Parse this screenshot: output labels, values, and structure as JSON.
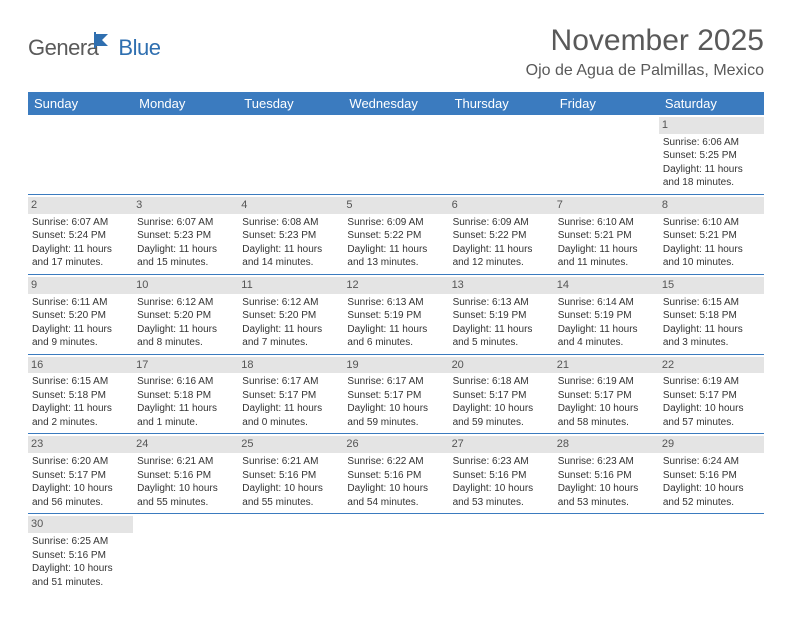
{
  "logo": {
    "part1": "Genera",
    "part2": "Blue"
  },
  "title": "November 2025",
  "location": "Ojo de Agua de Palmillas, Mexico",
  "colors": {
    "header_bg": "#3b7bbf",
    "header_text": "#ffffff",
    "daynum_bg": "#e4e4e4",
    "row_border": "#3b7bbf",
    "text": "#333333",
    "title_text": "#595959",
    "logo_gray": "#5a5a5a",
    "logo_blue": "#2f6fb0"
  },
  "day_headers": [
    "Sunday",
    "Monday",
    "Tuesday",
    "Wednesday",
    "Thursday",
    "Friday",
    "Saturday"
  ],
  "weeks": [
    [
      {
        "empty": true
      },
      {
        "empty": true
      },
      {
        "empty": true
      },
      {
        "empty": true
      },
      {
        "empty": true
      },
      {
        "empty": true
      },
      {
        "num": "1",
        "sunrise": "Sunrise: 6:06 AM",
        "sunset": "Sunset: 5:25 PM",
        "daylight": "Daylight: 11 hours and 18 minutes."
      }
    ],
    [
      {
        "num": "2",
        "sunrise": "Sunrise: 6:07 AM",
        "sunset": "Sunset: 5:24 PM",
        "daylight": "Daylight: 11 hours and 17 minutes."
      },
      {
        "num": "3",
        "sunrise": "Sunrise: 6:07 AM",
        "sunset": "Sunset: 5:23 PM",
        "daylight": "Daylight: 11 hours and 15 minutes."
      },
      {
        "num": "4",
        "sunrise": "Sunrise: 6:08 AM",
        "sunset": "Sunset: 5:23 PM",
        "daylight": "Daylight: 11 hours and 14 minutes."
      },
      {
        "num": "5",
        "sunrise": "Sunrise: 6:09 AM",
        "sunset": "Sunset: 5:22 PM",
        "daylight": "Daylight: 11 hours and 13 minutes."
      },
      {
        "num": "6",
        "sunrise": "Sunrise: 6:09 AM",
        "sunset": "Sunset: 5:22 PM",
        "daylight": "Daylight: 11 hours and 12 minutes."
      },
      {
        "num": "7",
        "sunrise": "Sunrise: 6:10 AM",
        "sunset": "Sunset: 5:21 PM",
        "daylight": "Daylight: 11 hours and 11 minutes."
      },
      {
        "num": "8",
        "sunrise": "Sunrise: 6:10 AM",
        "sunset": "Sunset: 5:21 PM",
        "daylight": "Daylight: 11 hours and 10 minutes."
      }
    ],
    [
      {
        "num": "9",
        "sunrise": "Sunrise: 6:11 AM",
        "sunset": "Sunset: 5:20 PM",
        "daylight": "Daylight: 11 hours and 9 minutes."
      },
      {
        "num": "10",
        "sunrise": "Sunrise: 6:12 AM",
        "sunset": "Sunset: 5:20 PM",
        "daylight": "Daylight: 11 hours and 8 minutes."
      },
      {
        "num": "11",
        "sunrise": "Sunrise: 6:12 AM",
        "sunset": "Sunset: 5:20 PM",
        "daylight": "Daylight: 11 hours and 7 minutes."
      },
      {
        "num": "12",
        "sunrise": "Sunrise: 6:13 AM",
        "sunset": "Sunset: 5:19 PM",
        "daylight": "Daylight: 11 hours and 6 minutes."
      },
      {
        "num": "13",
        "sunrise": "Sunrise: 6:13 AM",
        "sunset": "Sunset: 5:19 PM",
        "daylight": "Daylight: 11 hours and 5 minutes."
      },
      {
        "num": "14",
        "sunrise": "Sunrise: 6:14 AM",
        "sunset": "Sunset: 5:19 PM",
        "daylight": "Daylight: 11 hours and 4 minutes."
      },
      {
        "num": "15",
        "sunrise": "Sunrise: 6:15 AM",
        "sunset": "Sunset: 5:18 PM",
        "daylight": "Daylight: 11 hours and 3 minutes."
      }
    ],
    [
      {
        "num": "16",
        "sunrise": "Sunrise: 6:15 AM",
        "sunset": "Sunset: 5:18 PM",
        "daylight": "Daylight: 11 hours and 2 minutes."
      },
      {
        "num": "17",
        "sunrise": "Sunrise: 6:16 AM",
        "sunset": "Sunset: 5:18 PM",
        "daylight": "Daylight: 11 hours and 1 minute."
      },
      {
        "num": "18",
        "sunrise": "Sunrise: 6:17 AM",
        "sunset": "Sunset: 5:17 PM",
        "daylight": "Daylight: 11 hours and 0 minutes."
      },
      {
        "num": "19",
        "sunrise": "Sunrise: 6:17 AM",
        "sunset": "Sunset: 5:17 PM",
        "daylight": "Daylight: 10 hours and 59 minutes."
      },
      {
        "num": "20",
        "sunrise": "Sunrise: 6:18 AM",
        "sunset": "Sunset: 5:17 PM",
        "daylight": "Daylight: 10 hours and 59 minutes."
      },
      {
        "num": "21",
        "sunrise": "Sunrise: 6:19 AM",
        "sunset": "Sunset: 5:17 PM",
        "daylight": "Daylight: 10 hours and 58 minutes."
      },
      {
        "num": "22",
        "sunrise": "Sunrise: 6:19 AM",
        "sunset": "Sunset: 5:17 PM",
        "daylight": "Daylight: 10 hours and 57 minutes."
      }
    ],
    [
      {
        "num": "23",
        "sunrise": "Sunrise: 6:20 AM",
        "sunset": "Sunset: 5:17 PM",
        "daylight": "Daylight: 10 hours and 56 minutes."
      },
      {
        "num": "24",
        "sunrise": "Sunrise: 6:21 AM",
        "sunset": "Sunset: 5:16 PM",
        "daylight": "Daylight: 10 hours and 55 minutes."
      },
      {
        "num": "25",
        "sunrise": "Sunrise: 6:21 AM",
        "sunset": "Sunset: 5:16 PM",
        "daylight": "Daylight: 10 hours and 55 minutes."
      },
      {
        "num": "26",
        "sunrise": "Sunrise: 6:22 AM",
        "sunset": "Sunset: 5:16 PM",
        "daylight": "Daylight: 10 hours and 54 minutes."
      },
      {
        "num": "27",
        "sunrise": "Sunrise: 6:23 AM",
        "sunset": "Sunset: 5:16 PM",
        "daylight": "Daylight: 10 hours and 53 minutes."
      },
      {
        "num": "28",
        "sunrise": "Sunrise: 6:23 AM",
        "sunset": "Sunset: 5:16 PM",
        "daylight": "Daylight: 10 hours and 53 minutes."
      },
      {
        "num": "29",
        "sunrise": "Sunrise: 6:24 AM",
        "sunset": "Sunset: 5:16 PM",
        "daylight": "Daylight: 10 hours and 52 minutes."
      }
    ],
    [
      {
        "num": "30",
        "sunrise": "Sunrise: 6:25 AM",
        "sunset": "Sunset: 5:16 PM",
        "daylight": "Daylight: 10 hours and 51 minutes."
      },
      {
        "empty": true
      },
      {
        "empty": true
      },
      {
        "empty": true
      },
      {
        "empty": true
      },
      {
        "empty": true
      },
      {
        "empty": true
      }
    ]
  ]
}
